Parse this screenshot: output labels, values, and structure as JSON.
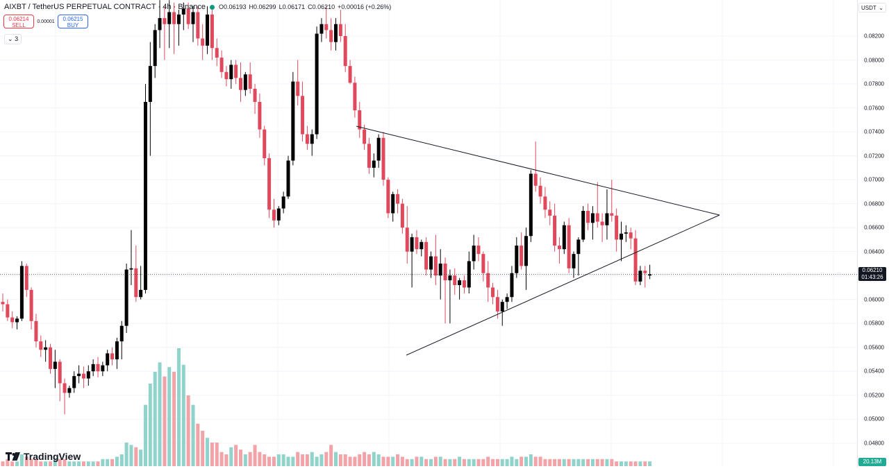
{
  "header": {
    "symbol": "AIXBT / TetherUS PERPETUAL CONTRACT · 4h · Binance",
    "open": "O0.06193",
    "high": "H0.06299",
    "low": "L0.06171",
    "close": "C0.06210",
    "change": "+0.00016 (+0.26%)"
  },
  "trade": {
    "sell_price": "0.06214",
    "sell_label": "SELL",
    "spread": "0.00001",
    "buy_price": "0.06215",
    "buy_label": "BUY"
  },
  "indicators_toggle": "3",
  "currency_label": "USDT",
  "last_price": "0.06210",
  "countdown": "01:43:26",
  "volume_label": "20.13M",
  "brand": "TradingView",
  "colors": {
    "up": "#000000",
    "down": "#e0485c",
    "vol_up": "#8fd3cb",
    "vol_down": "#f2a3a8"
  },
  "chart_data": {
    "type": "candlestick",
    "y_ticks": [
      "0.08200",
      "0.08000",
      "0.07800",
      "0.07600",
      "0.07400",
      "0.07200",
      "0.07000",
      "0.06800",
      "0.06600",
      "0.06400",
      "0.06200",
      "0.06000",
      "0.05800",
      "0.05600",
      "0.05400",
      "0.05200",
      "0.05000",
      "0.04800"
    ],
    "candles": [
      [
        0.0598,
        0.0605,
        0.059,
        0.0596
      ],
      [
        0.0596,
        0.06,
        0.0582,
        0.0585
      ],
      [
        0.0585,
        0.059,
        0.0576,
        0.0581
      ],
      [
        0.0581,
        0.0586,
        0.0575,
        0.0584
      ],
      [
        0.0584,
        0.0632,
        0.0582,
        0.0628
      ],
      [
        0.0628,
        0.063,
        0.0602,
        0.0608
      ],
      [
        0.0608,
        0.061,
        0.0575,
        0.0582
      ],
      [
        0.0582,
        0.0588,
        0.056,
        0.0565
      ],
      [
        0.0565,
        0.057,
        0.0552,
        0.0558
      ],
      [
        0.0558,
        0.0566,
        0.0548,
        0.056
      ],
      [
        0.056,
        0.0563,
        0.0538,
        0.0542
      ],
      [
        0.0542,
        0.0558,
        0.0526,
        0.0548
      ],
      [
        0.0548,
        0.055,
        0.0515,
        0.053
      ],
      [
        0.053,
        0.0534,
        0.0504,
        0.0522
      ],
      [
        0.0522,
        0.0528,
        0.0518,
        0.0526
      ],
      [
        0.0526,
        0.054,
        0.0522,
        0.0536
      ],
      [
        0.0536,
        0.0545,
        0.053,
        0.0538
      ],
      [
        0.0538,
        0.0544,
        0.0526,
        0.0534
      ],
      [
        0.0534,
        0.0545,
        0.0528,
        0.054
      ],
      [
        0.054,
        0.055,
        0.0536,
        0.0546
      ],
      [
        0.0546,
        0.0552,
        0.0535,
        0.054
      ],
      [
        0.054,
        0.0548,
        0.0536,
        0.0545
      ],
      [
        0.0545,
        0.0558,
        0.054,
        0.0555
      ],
      [
        0.0555,
        0.056,
        0.0545,
        0.055
      ],
      [
        0.055,
        0.0568,
        0.0542,
        0.0565
      ],
      [
        0.0565,
        0.0582,
        0.055,
        0.0578
      ],
      [
        0.0578,
        0.063,
        0.0572,
        0.0625
      ],
      [
        0.0625,
        0.0658,
        0.0612,
        0.0626
      ],
      [
        0.0626,
        0.0645,
        0.0598,
        0.0602
      ],
      [
        0.0602,
        0.0628,
        0.06,
        0.0608
      ],
      [
        0.0608,
        0.078,
        0.0605,
        0.0765
      ],
      [
        0.0765,
        0.0815,
        0.072,
        0.0795
      ],
      [
        0.0795,
        0.083,
        0.0785,
        0.0825
      ],
      [
        0.0825,
        0.085,
        0.081,
        0.0835
      ],
      [
        0.0835,
        0.0845,
        0.08,
        0.083
      ],
      [
        0.083,
        0.085,
        0.081,
        0.084
      ],
      [
        0.084,
        0.0848,
        0.0805,
        0.083
      ],
      [
        0.083,
        0.0842,
        0.0812,
        0.0838
      ],
      [
        0.0838,
        0.0848,
        0.0825,
        0.0843
      ],
      [
        0.0843,
        0.0848,
        0.0826,
        0.083
      ],
      [
        0.083,
        0.0845,
        0.0815,
        0.084
      ],
      [
        0.084,
        0.0845,
        0.0812,
        0.0818
      ],
      [
        0.0818,
        0.083,
        0.08,
        0.0812
      ],
      [
        0.0812,
        0.0845,
        0.0805,
        0.0838
      ],
      [
        0.0838,
        0.0845,
        0.08,
        0.081
      ],
      [
        0.081,
        0.0818,
        0.0795,
        0.0802
      ],
      [
        0.0802,
        0.0808,
        0.0785,
        0.079
      ],
      [
        0.079,
        0.0795,
        0.0778,
        0.0784
      ],
      [
        0.0784,
        0.08,
        0.0776,
        0.0796
      ],
      [
        0.0796,
        0.08,
        0.078,
        0.0785
      ],
      [
        0.0785,
        0.0798,
        0.0765,
        0.0775
      ],
      [
        0.0775,
        0.079,
        0.077,
        0.0788
      ],
      [
        0.0788,
        0.0798,
        0.0772,
        0.0776
      ],
      [
        0.0776,
        0.078,
        0.0755,
        0.0765
      ],
      [
        0.0765,
        0.0772,
        0.0735,
        0.0742
      ],
      [
        0.0742,
        0.0745,
        0.0712,
        0.0718
      ],
      [
        0.0718,
        0.0722,
        0.0668,
        0.0675
      ],
      [
        0.0675,
        0.0684,
        0.066,
        0.0666
      ],
      [
        0.0666,
        0.0678,
        0.0662,
        0.0676
      ],
      [
        0.0676,
        0.069,
        0.0672,
        0.0686
      ],
      [
        0.0686,
        0.072,
        0.0684,
        0.0716
      ],
      [
        0.0716,
        0.079,
        0.0712,
        0.0782
      ],
      [
        0.0782,
        0.08,
        0.0762,
        0.077
      ],
      [
        0.077,
        0.0782,
        0.0732,
        0.0738
      ],
      [
        0.0738,
        0.0745,
        0.0725,
        0.073
      ],
      [
        0.073,
        0.0742,
        0.072,
        0.0738
      ],
      [
        0.0738,
        0.0828,
        0.0734,
        0.0822
      ],
      [
        0.0822,
        0.0835,
        0.0815,
        0.083
      ],
      [
        0.083,
        0.0845,
        0.0818,
        0.0825
      ],
      [
        0.0825,
        0.0835,
        0.0808,
        0.0815
      ],
      [
        0.0815,
        0.0835,
        0.0808,
        0.083
      ],
      [
        0.083,
        0.0842,
        0.0815,
        0.082
      ],
      [
        0.082,
        0.083,
        0.079,
        0.0795
      ],
      [
        0.0795,
        0.08,
        0.078,
        0.0781
      ],
      [
        0.0781,
        0.0786,
        0.0752,
        0.0758
      ],
      [
        0.0758,
        0.0765,
        0.0735,
        0.0742
      ],
      [
        0.0742,
        0.0746,
        0.0725,
        0.073
      ],
      [
        0.073,
        0.0735,
        0.0705,
        0.071
      ],
      [
        0.071,
        0.0722,
        0.0702,
        0.0716
      ],
      [
        0.0716,
        0.0738,
        0.071,
        0.0735
      ],
      [
        0.0735,
        0.074,
        0.0695,
        0.07
      ],
      [
        0.07,
        0.0702,
        0.0668,
        0.0672
      ],
      [
        0.0672,
        0.069,
        0.0665,
        0.0688
      ],
      [
        0.0688,
        0.0692,
        0.0672,
        0.068
      ],
      [
        0.068,
        0.0684,
        0.0655,
        0.066
      ],
      [
        0.066,
        0.0678,
        0.063,
        0.064
      ],
      [
        0.064,
        0.0655,
        0.061,
        0.0652
      ],
      [
        0.0652,
        0.0658,
        0.0638,
        0.0642
      ],
      [
        0.0642,
        0.065,
        0.0636,
        0.0648
      ],
      [
        0.0648,
        0.0652,
        0.062,
        0.0625
      ],
      [
        0.0625,
        0.064,
        0.0618,
        0.0636
      ],
      [
        0.0636,
        0.0654,
        0.0612,
        0.062
      ],
      [
        0.062,
        0.0642,
        0.06,
        0.063
      ],
      [
        0.063,
        0.0635,
        0.058,
        0.0616
      ],
      [
        0.0616,
        0.0625,
        0.058,
        0.062
      ],
      [
        0.062,
        0.0626,
        0.0604,
        0.0612
      ],
      [
        0.0612,
        0.0618,
        0.06,
        0.0616
      ],
      [
        0.0616,
        0.062,
        0.0605,
        0.061
      ],
      [
        0.061,
        0.064,
        0.0605,
        0.0632
      ],
      [
        0.0632,
        0.0654,
        0.0625,
        0.0645
      ],
      [
        0.0645,
        0.0652,
        0.0632,
        0.0638
      ],
      [
        0.0638,
        0.064,
        0.0615,
        0.0622
      ],
      [
        0.0622,
        0.0632,
        0.0598,
        0.061
      ],
      [
        0.061,
        0.0614,
        0.0596,
        0.0602
      ],
      [
        0.0602,
        0.0608,
        0.0584,
        0.059
      ],
      [
        0.059,
        0.06,
        0.0578,
        0.0598
      ],
      [
        0.0598,
        0.0605,
        0.0592,
        0.0602
      ],
      [
        0.0602,
        0.0628,
        0.0598,
        0.0622
      ],
      [
        0.0622,
        0.0652,
        0.0618,
        0.0645
      ],
      [
        0.0645,
        0.0656,
        0.0625,
        0.0628
      ],
      [
        0.0628,
        0.066,
        0.0608,
        0.0653
      ],
      [
        0.0653,
        0.0708,
        0.0648,
        0.0705
      ],
      [
        0.0705,
        0.0732,
        0.069,
        0.0695
      ],
      [
        0.0695,
        0.0702,
        0.068,
        0.0686
      ],
      [
        0.0686,
        0.0694,
        0.0668,
        0.0675
      ],
      [
        0.0675,
        0.0682,
        0.0662,
        0.067
      ],
      [
        0.067,
        0.068,
        0.064,
        0.0645
      ],
      [
        0.0645,
        0.0652,
        0.063,
        0.0642
      ],
      [
        0.0642,
        0.0665,
        0.0638,
        0.0662
      ],
      [
        0.0662,
        0.0668,
        0.0622,
        0.0626
      ],
      [
        0.0626,
        0.064,
        0.0618,
        0.0638
      ],
      [
        0.0638,
        0.0652,
        0.062,
        0.065
      ],
      [
        0.065,
        0.0678,
        0.0648,
        0.0674
      ],
      [
        0.0674,
        0.068,
        0.0658,
        0.0664
      ],
      [
        0.0664,
        0.0678,
        0.065,
        0.0672
      ],
      [
        0.0672,
        0.0698,
        0.066,
        0.0665
      ],
      [
        0.0665,
        0.0672,
        0.0648,
        0.0662
      ],
      [
        0.0662,
        0.0692,
        0.065,
        0.0672
      ],
      [
        0.0672,
        0.07,
        0.0665,
        0.067
      ],
      [
        0.067,
        0.0676,
        0.064,
        0.065
      ],
      [
        0.065,
        0.0665,
        0.0632,
        0.0655
      ],
      [
        0.0655,
        0.0662,
        0.0648,
        0.0656
      ],
      [
        0.0656,
        0.066,
        0.0642,
        0.0651
      ],
      [
        0.0651,
        0.0658,
        0.0612,
        0.0615
      ],
      [
        0.0615,
        0.0628,
        0.0612,
        0.0624
      ],
      [
        0.0624,
        0.0628,
        0.061,
        0.0622
      ],
      [
        0.062,
        0.0629,
        0.0617,
        0.0621
      ]
    ],
    "volumes": [
      2,
      3,
      2,
      2,
      5,
      4,
      3,
      3,
      2,
      2,
      2,
      3,
      3,
      3,
      2,
      2,
      2,
      2,
      2,
      2,
      2,
      3,
      3,
      3,
      4,
      5,
      10,
      9,
      8,
      7,
      26,
      35,
      40,
      44,
      38,
      42,
      40,
      50,
      43,
      30,
      26,
      18,
      15,
      12,
      10,
      10,
      6,
      5,
      8,
      9,
      7,
      5,
      6,
      9,
      6,
      5,
      4,
      4,
      5,
      5,
      4,
      4,
      6,
      5,
      5,
      6,
      4,
      5,
      6,
      9,
      6,
      5,
      5,
      4,
      4,
      5,
      6,
      5,
      6,
      5,
      4,
      4,
      4,
      5,
      4,
      3,
      3,
      4,
      4,
      3,
      3,
      4,
      4,
      3,
      3,
      3,
      4,
      3,
      3,
      3,
      3,
      3,
      4,
      3,
      3,
      3,
      3,
      4,
      3,
      4,
      4,
      5,
      4,
      4,
      3,
      3,
      3,
      3,
      3,
      3,
      3,
      3,
      3,
      3,
      3,
      3,
      3,
      3,
      3,
      2,
      2,
      2,
      2,
      2,
      2,
      2,
      2
    ]
  }
}
